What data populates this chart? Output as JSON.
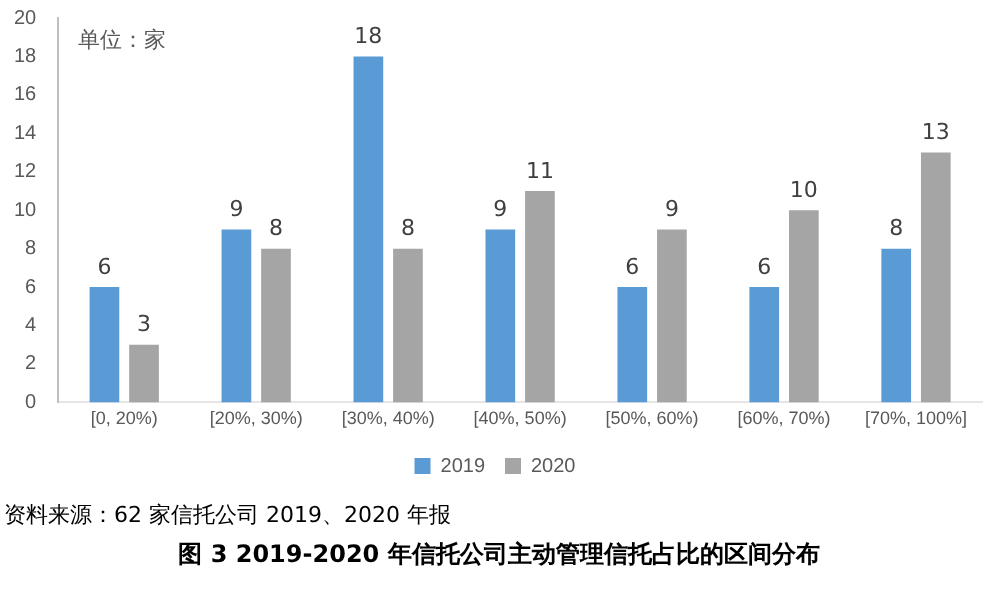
{
  "chart_data": {
    "type": "bar",
    "title": "图 3  2019-2020 年信托公司主动管理信托占比的区间分布",
    "categories": [
      "[0, 20%)",
      "[20%, 30%)",
      "[30%, 40%)",
      "[40%, 50%)",
      "[50%, 60%)",
      "[60%, 70%)",
      "[70%, 100%]"
    ],
    "series": [
      {
        "name": "2019",
        "color": "#5b9bd5",
        "values": [
          6,
          9,
          18,
          9,
          6,
          6,
          8
        ]
      },
      {
        "name": "2020",
        "color": "#a5a5a5",
        "values": [
          3,
          8,
          8,
          11,
          9,
          10,
          13
        ]
      }
    ],
    "ylim": [
      0,
      20
    ],
    "yticks": [
      0,
      2,
      4,
      6,
      8,
      10,
      12,
      14,
      16,
      18,
      20
    ],
    "grid": false,
    "legend": "bottom",
    "data_labels": true,
    "annotations": [
      "单位：家",
      "资料来源：62 家信托公司 2019、2020 年报"
    ]
  }
}
